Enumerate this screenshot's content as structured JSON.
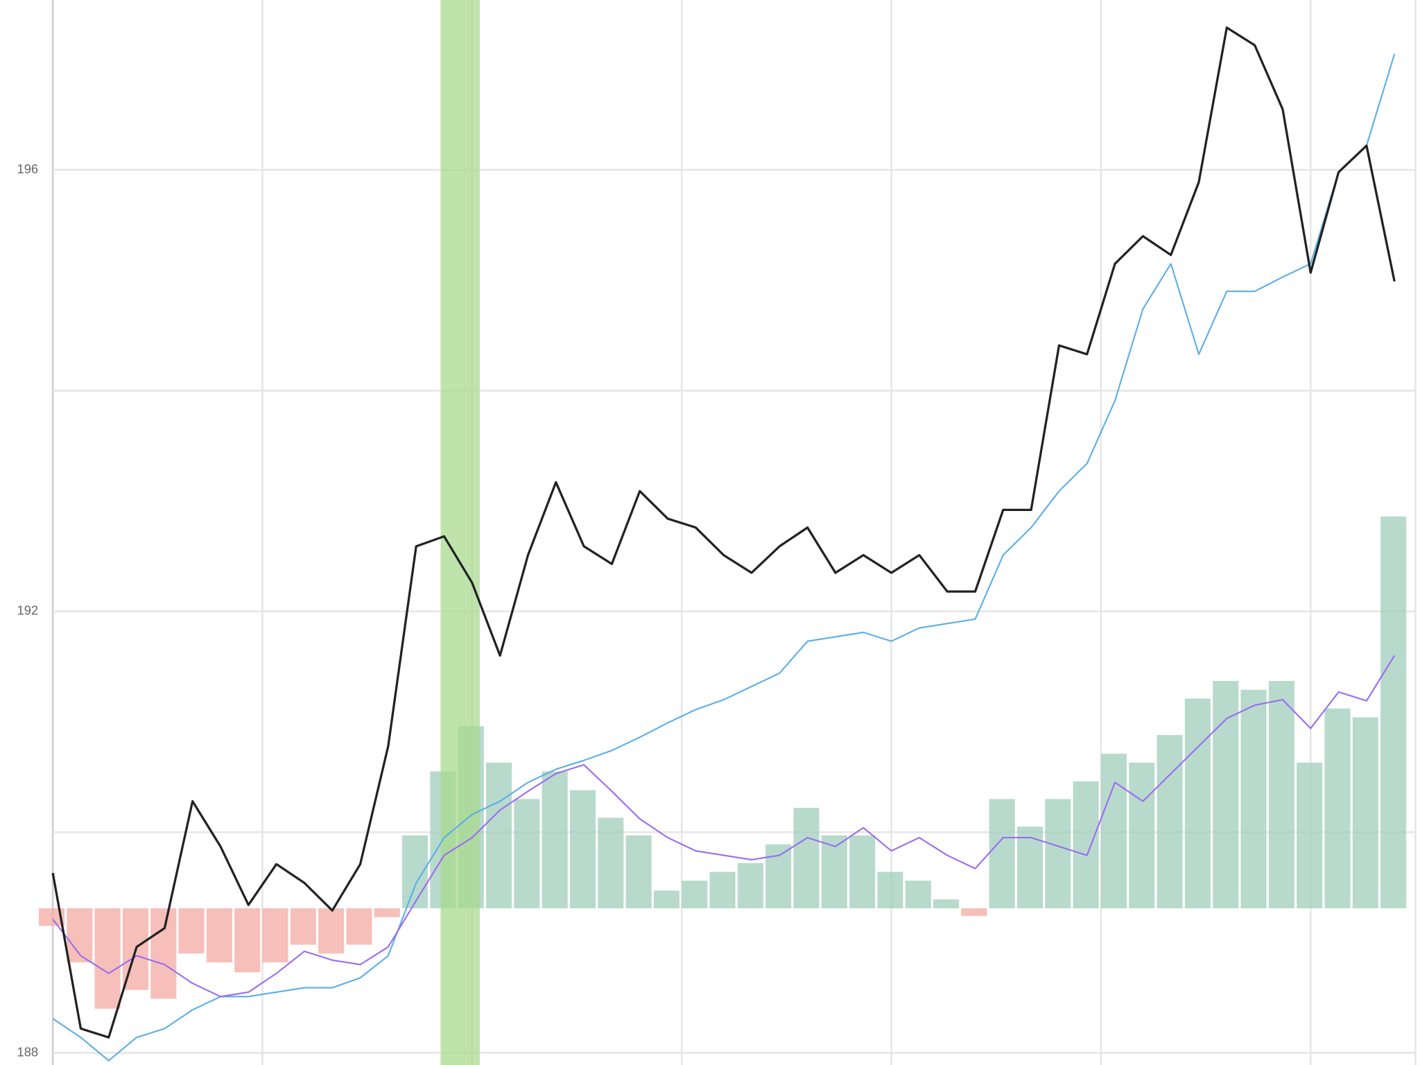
{
  "chart_data": {
    "type": "line",
    "x": [
      0,
      2,
      4,
      6,
      8,
      10,
      12,
      14,
      16,
      18,
      20,
      22,
      24,
      26,
      28,
      30,
      32,
      34,
      36,
      38,
      40,
      42,
      44,
      46,
      48,
      50,
      52,
      54,
      56,
      58,
      60,
      62,
      64,
      66,
      68,
      70,
      72,
      74,
      76,
      78,
      80,
      82,
      84,
      86,
      88,
      90,
      92,
      94,
      96
    ],
    "xlim": [
      0,
      97.5
    ],
    "xgrid": [
      0,
      15,
      30,
      45,
      60,
      75,
      90
    ],
    "ylim": [
      187.89,
      197.54
    ],
    "yticks": [
      188,
      192,
      196
    ],
    "minor_yticks": [
      190,
      194
    ],
    "y2lim": [
      -1.42,
      8.23
    ],
    "grid": true,
    "highlight": [
      27.75,
      30.55
    ],
    "highlight_color": "#a8d98f",
    "series": [
      {
        "type": "bar",
        "axis": "y2",
        "color": "#9fcdbb",
        "negative_color": "#f4a9a3",
        "values": [
          -0.16,
          -0.49,
          -0.91,
          -0.74,
          -0.82,
          -0.41,
          -0.49,
          -0.58,
          -0.49,
          -0.33,
          -0.41,
          -0.33,
          -0.08,
          0.66,
          1.24,
          1.65,
          1.32,
          0.99,
          1.24,
          1.07,
          0.82,
          0.66,
          0.16,
          0.25,
          0.33,
          0.41,
          0.58,
          0.91,
          0.66,
          0.66,
          0.33,
          0.25,
          0.08,
          -0.07,
          0.99,
          0.74,
          0.99,
          1.15,
          1.4,
          1.32,
          1.57,
          1.9,
          2.06,
          1.98,
          2.06,
          1.32,
          1.81,
          1.73,
          3.55
        ]
      },
      {
        "type": "line",
        "color": "#5aaee8",
        "values": [
          188.31,
          188.14,
          187.93,
          188.14,
          188.22,
          188.39,
          188.51,
          188.51,
          188.55,
          188.59,
          188.59,
          188.68,
          188.88,
          189.54,
          189.95,
          190.16,
          190.28,
          190.45,
          190.57,
          190.65,
          190.74,
          190.86,
          190.99,
          191.11,
          191.2,
          191.32,
          191.44,
          191.73,
          191.77,
          191.81,
          191.73,
          191.85,
          191.89,
          191.93,
          192.51,
          192.76,
          193.09,
          193.34,
          193.91,
          194.74,
          195.15,
          194.33,
          194.9,
          194.9,
          195.03,
          195.15,
          195.98,
          196.22,
          197.05
        ]
      },
      {
        "type": "line",
        "color": "#9a6cf0",
        "values": [
          189.21,
          188.88,
          188.72,
          188.88,
          188.8,
          188.63,
          188.51,
          188.55,
          188.72,
          188.92,
          188.84,
          188.8,
          188.96,
          189.38,
          189.79,
          189.95,
          190.2,
          190.37,
          190.53,
          190.61,
          190.37,
          190.12,
          189.95,
          189.83,
          189.79,
          189.75,
          189.79,
          189.95,
          189.87,
          190.04,
          189.83,
          189.95,
          189.79,
          189.67,
          189.95,
          189.95,
          189.87,
          189.79,
          190.45,
          190.28,
          190.53,
          190.78,
          191.03,
          191.15,
          191.2,
          190.94,
          191.27,
          191.19,
          191.6
        ]
      },
      {
        "type": "line",
        "color": "#222222",
        "values": [
          189.63,
          188.22,
          188.14,
          188.96,
          189.13,
          190.28,
          189.87,
          189.34,
          189.71,
          189.54,
          189.29,
          189.71,
          190.78,
          192.59,
          192.68,
          192.26,
          191.6,
          192.51,
          193.17,
          192.59,
          192.43,
          193.09,
          192.84,
          192.76,
          192.51,
          192.35,
          192.59,
          192.76,
          192.35,
          192.51,
          192.35,
          192.51,
          192.18,
          192.18,
          192.92,
          192.92,
          194.41,
          194.33,
          195.15,
          195.4,
          195.23,
          195.89,
          197.29,
          197.13,
          196.55,
          195.07,
          195.98,
          196.22,
          194.99
        ]
      }
    ]
  }
}
